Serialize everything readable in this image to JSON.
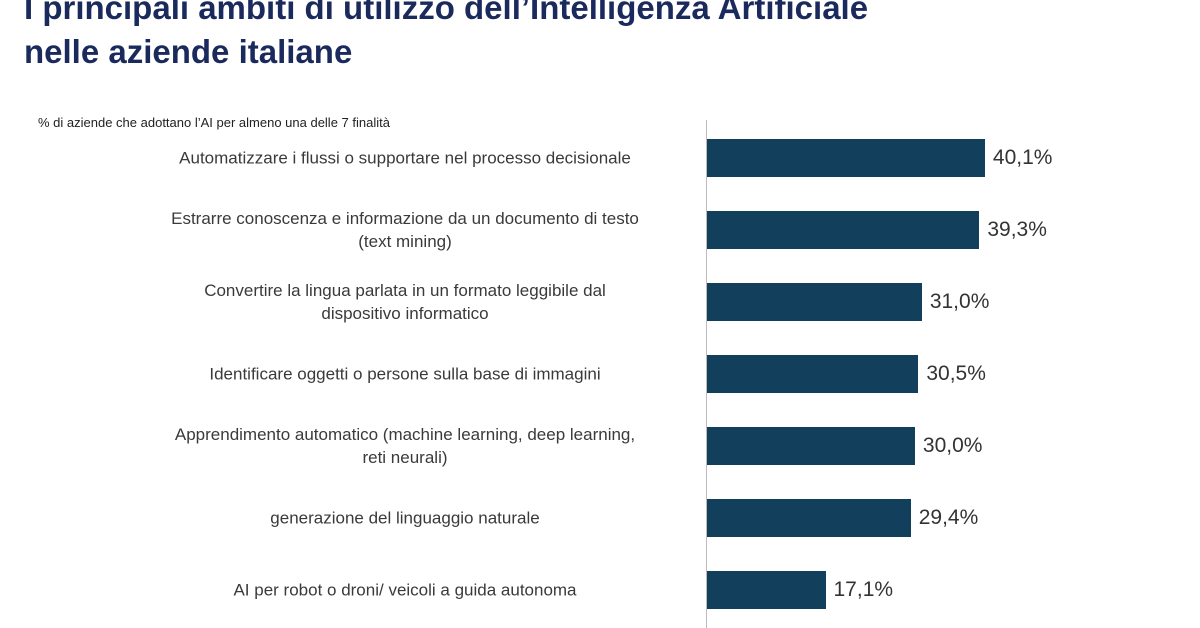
{
  "chart_data": {
    "type": "bar",
    "orientation": "horizontal",
    "title": "I principali ambiti di utilizzo dell’Intelligenza Artificiale nelle aziende italiane",
    "subtitle": "% di aziende che adottano l’AI per almeno una delle 7 finalità",
    "categories": [
      "Automatizzare i flussi o supportare nel processo decisionale",
      "Estrarre conoscenza e informazione da un documento di testo\n(text mining)",
      "Convertire la lingua parlata in un formato leggibile dal\ndispositivo informatico",
      "Identificare oggetti o persone sulla base di immagini",
      "Apprendimento automatico (machine learning, deep learning,\nreti neurali)",
      "generazione del linguaggio naturale",
      "AI per robot o droni/ veicoli a guida autonoma"
    ],
    "values": [
      40.1,
      39.3,
      31.0,
      30.5,
      30.0,
      29.4,
      17.1
    ],
    "value_labels": [
      "40,1%",
      "39,3%",
      "31,0%",
      "30,5%",
      "30,0%",
      "29,4%",
      "17,1%"
    ],
    "color": "#123f5c"
  }
}
